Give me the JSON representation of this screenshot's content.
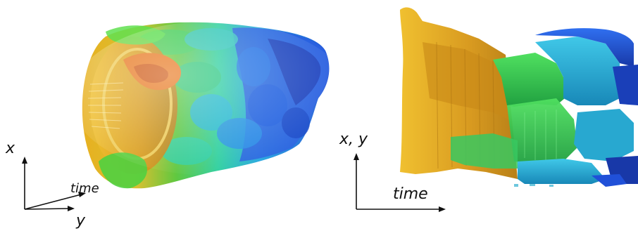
{
  "left_panel": {
    "axis_labels": {
      "x": "x",
      "time": "time",
      "y": "y"
    }
  },
  "right_panel": {
    "axis_labels": {
      "vertical": "x, y",
      "horizontal": "time"
    }
  },
  "palette": {
    "gold": "#e8b020",
    "orange": "#e87820",
    "green": "#30c040",
    "cyan": "#20b8d0",
    "blue": "#2050d8",
    "dark_blue": "#1830a0"
  }
}
